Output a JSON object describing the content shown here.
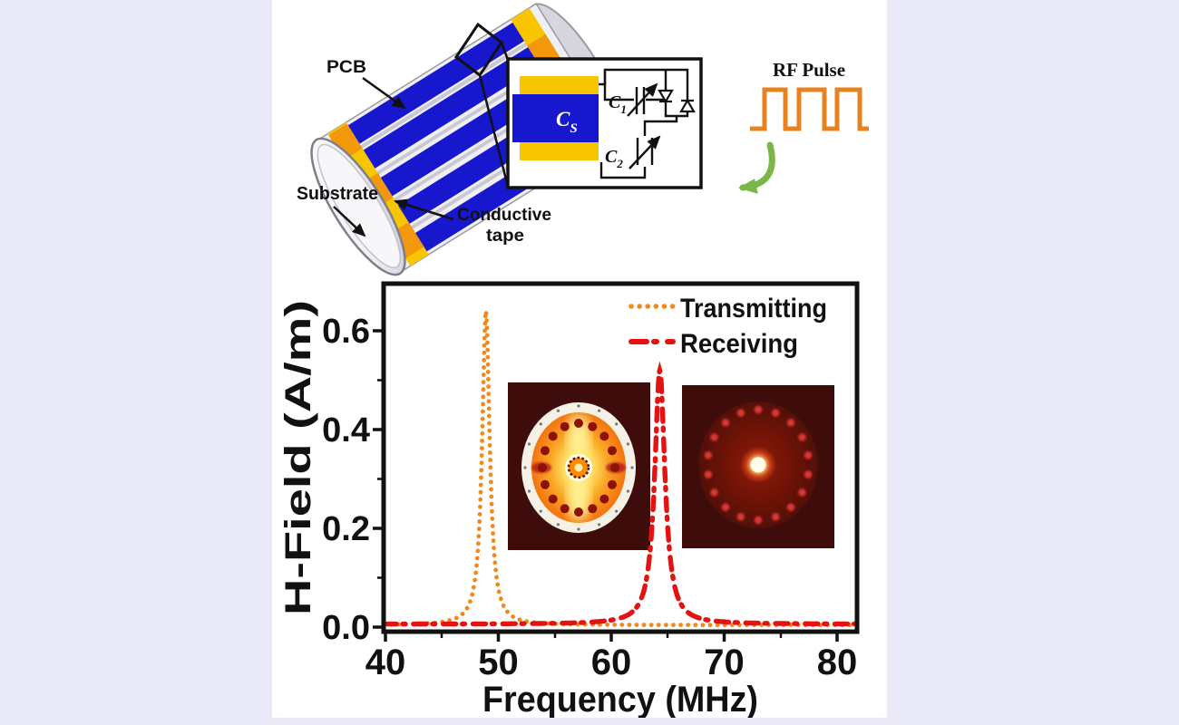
{
  "figure": {
    "type": "scientific-figure",
    "background_color": "#E9E9F7",
    "panel_color": "#FFFFFF"
  },
  "coil_diagram": {
    "labels": {
      "pcb": "PCB",
      "substrate": "Substrate",
      "conductive_tape_line1": "Conductive",
      "conductive_tape_line2": "tape"
    },
    "colors": {
      "pcb_blue": "#1717CE",
      "tape_yellow": "#F7C600",
      "tape_orange": "#F2980A",
      "substrate_silver": "#E6E6EE",
      "rail_gray": "#C9C9D4"
    }
  },
  "circuit_inset": {
    "sample_capacitor": {
      "base": "C",
      "sub": "S"
    },
    "cap1": {
      "base": "C",
      "sub": "1"
    },
    "cap2": {
      "base": "C",
      "sub": "2"
    },
    "colors": {
      "dielectric_blue": "#1717CE",
      "electrode_yellow": "#F7C600"
    }
  },
  "rf_pulse": {
    "label": "RF Pulse",
    "waveform_color": "#E8821E",
    "pulse_count": 3,
    "arrow_color": "#7AB648"
  },
  "chart_data": {
    "type": "line",
    "xlabel": "Frequency (MHz)",
    "ylabel": "H-Field (A/m)",
    "xlim": [
      40,
      80
    ],
    "ylim": [
      0,
      0.7
    ],
    "x_ticks": [
      "40",
      "50",
      "60",
      "70",
      "80"
    ],
    "y_ticks": [
      "0.0",
      "0.2",
      "0.4",
      "0.6"
    ],
    "grid": false,
    "legend_position": "upper right",
    "series": [
      {
        "name": "Transmitting",
        "style": "dotted",
        "color": "#F08A1D",
        "peak_frequency_mhz": 48.9,
        "peak_h_field": 0.64,
        "fwhm_mhz": 0.8,
        "baseline": 0.004
      },
      {
        "name": "Receiving",
        "style": "dash-dot",
        "color": "#E51212",
        "peak_frequency_mhz": 64.3,
        "peak_h_field": 0.52,
        "fwhm_mhz": 1.1,
        "baseline": 0.006
      }
    ],
    "insets": {
      "left_field_map": {
        "description": "transmitting-mode H-field map, bright flower pattern",
        "background": "#3E0D0B",
        "dot_color": "#8E1105",
        "dot_count": 16
      },
      "right_field_map": {
        "description": "receiving-mode (detuned) H-field map, dark with faint ring",
        "background": "#3E0D0B",
        "dot_color": "#E53935",
        "dot_count": 18
      }
    }
  }
}
